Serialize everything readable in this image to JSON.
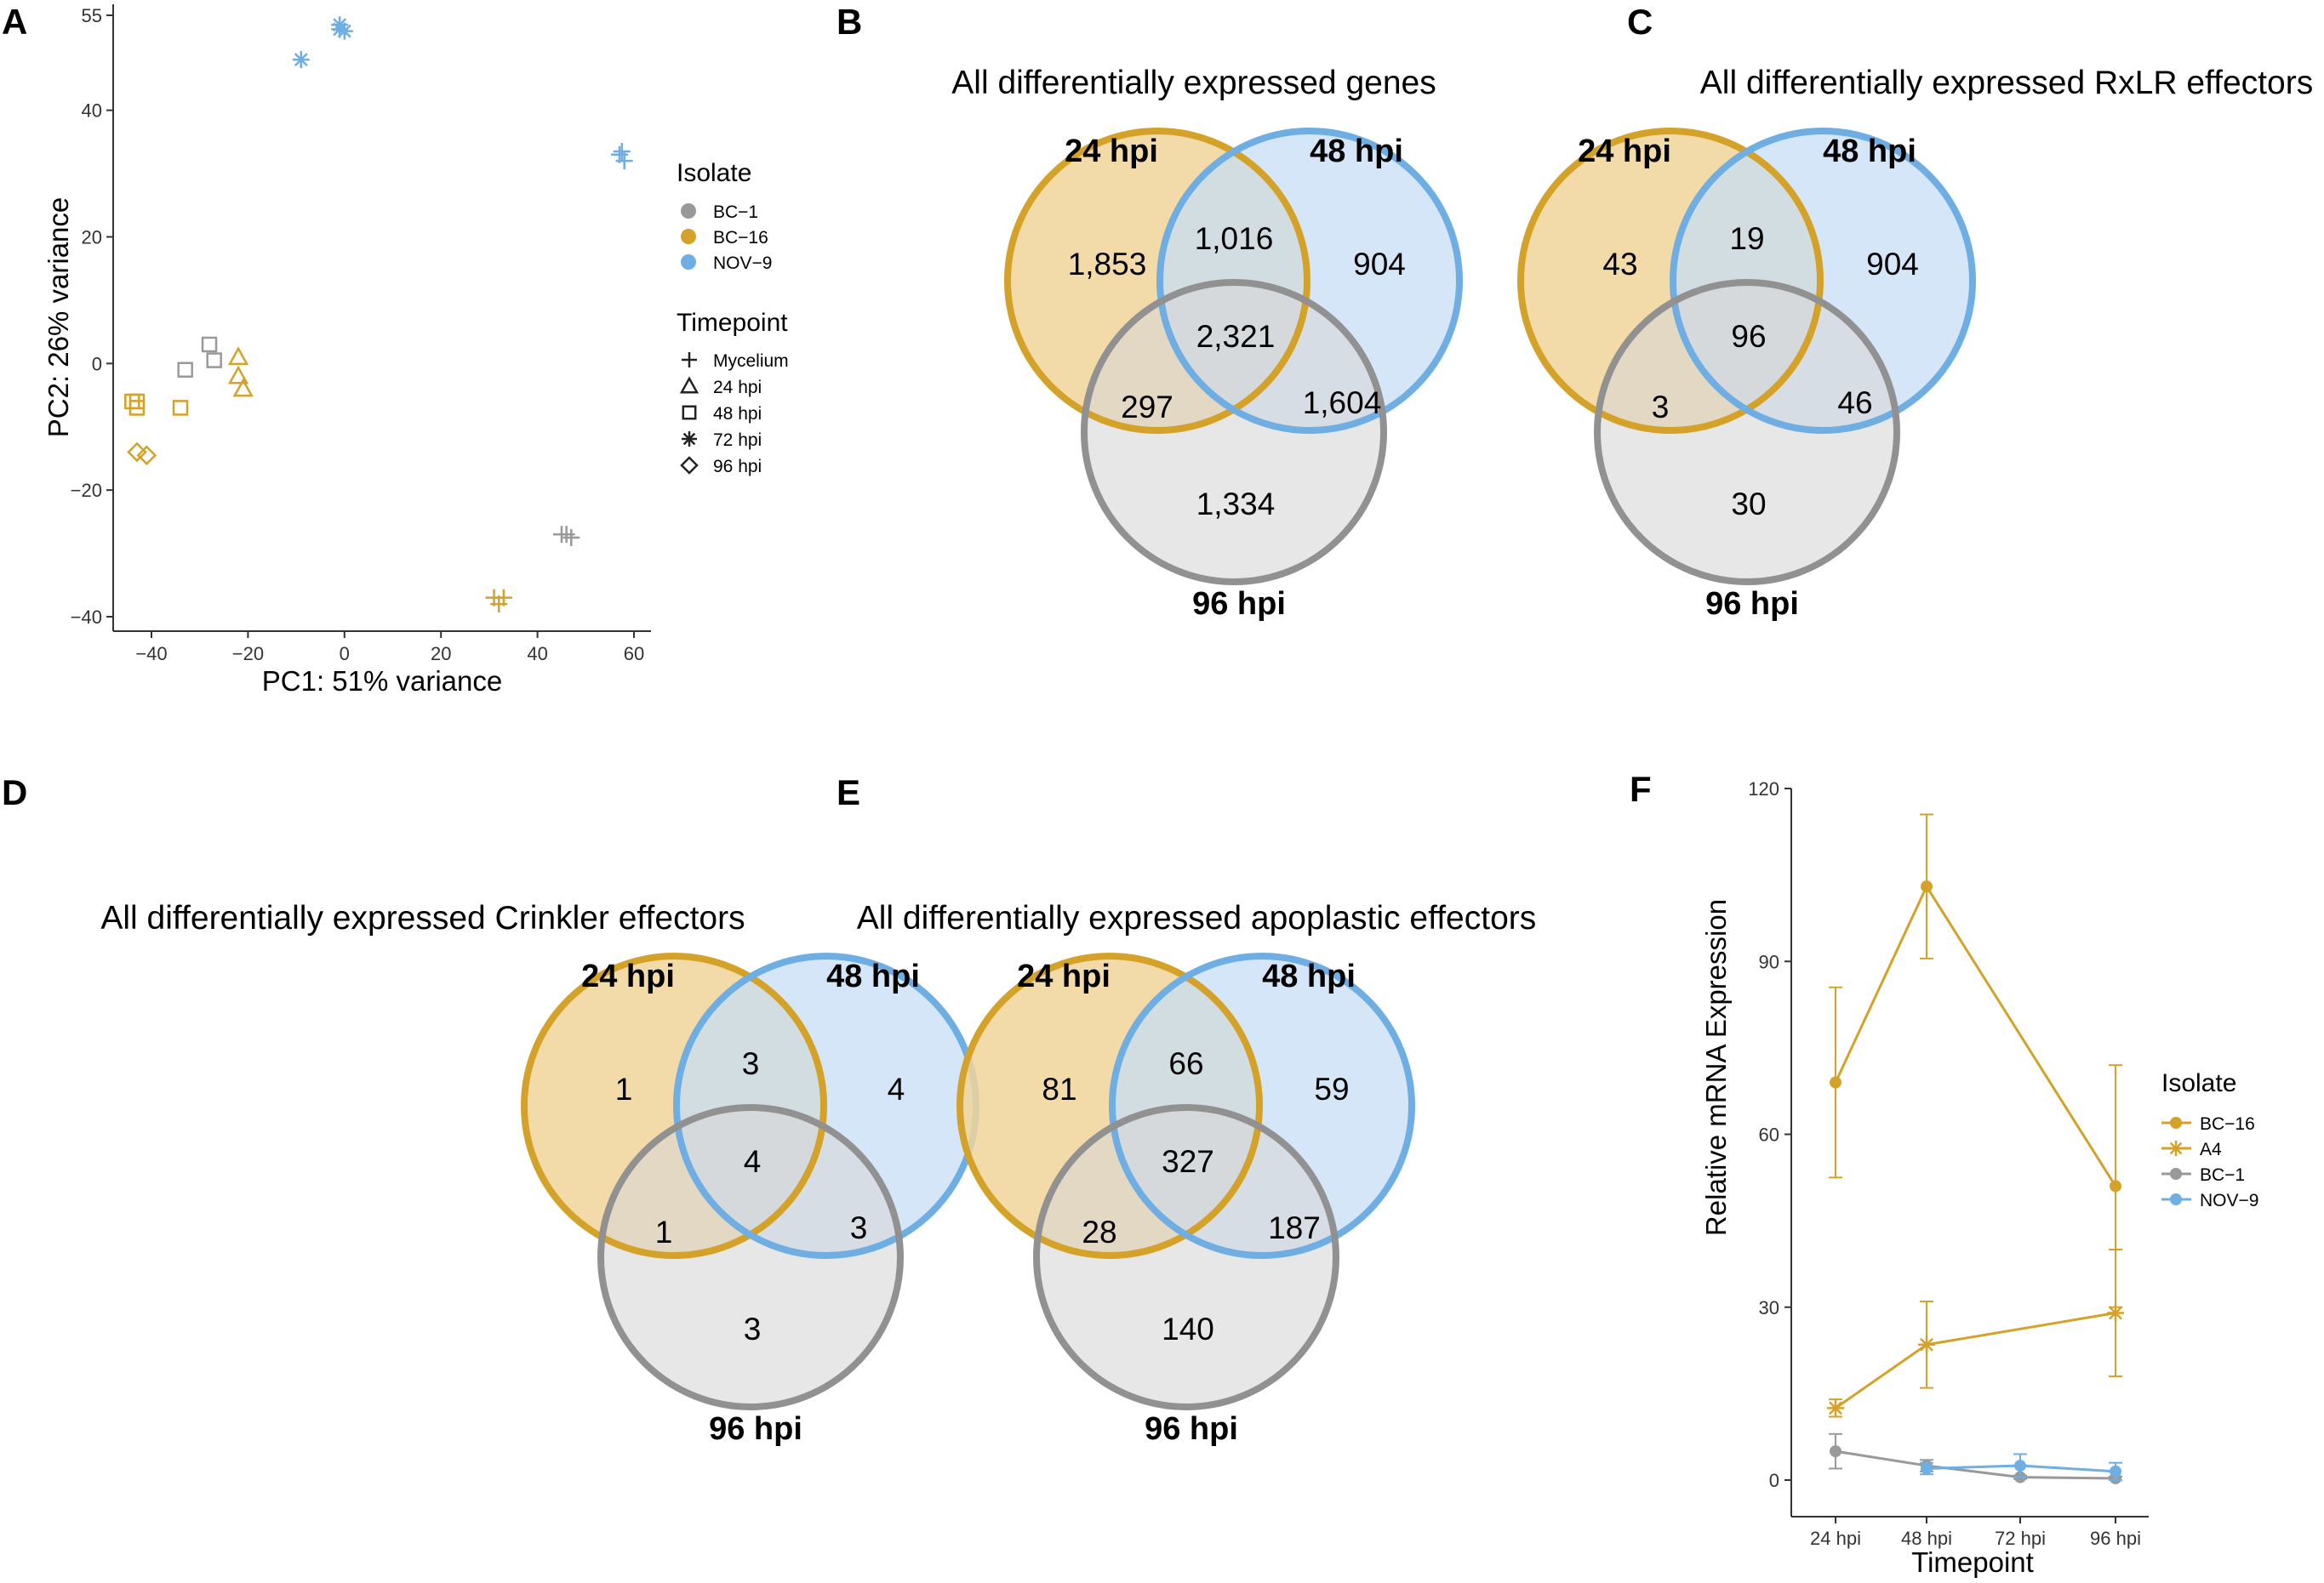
{
  "colors": {
    "BC-1": "#999999",
    "BC-16": "#D4A228",
    "NOV-9": "#6FAEE2",
    "A4": "#D4A228",
    "vennFill24": "#F0D49A",
    "vennFill48": "#C7DEF5",
    "vennFill96": "#D7D7D7",
    "vennStroke24": "#D4A228",
    "vennStroke48": "#6FAEE2",
    "vennStroke96": "#919191"
  },
  "chart_data": [
    {
      "panel": "A",
      "type": "scatter",
      "xlabel": "PC1: 51% variance",
      "ylabel": "PC2: 26% variance",
      "xlim": [
        -50,
        65
      ],
      "ylim": [
        -42,
        56
      ],
      "xticks": [
        "−40",
        "−20",
        "0",
        "20",
        "40",
        "60"
      ],
      "yticks": [
        "−40",
        "−20",
        "0",
        "20",
        "40",
        "55"
      ],
      "legend_isolate": {
        "title": "Isolate",
        "items": [
          "BC−1",
          "BC−16",
          "NOV−9"
        ]
      },
      "legend_timepoint": {
        "title": "Timepoint",
        "items": [
          "Mycelium",
          "24 hpi",
          "48 hpi",
          "72 hpi",
          "96 hpi"
        ]
      },
      "points": [
        {
          "x": -1,
          "y": 53.5,
          "isolate": "NOV-9",
          "timepoint": "72 hpi"
        },
        {
          "x": 0,
          "y": 52.5,
          "isolate": "NOV-9",
          "timepoint": "72 hpi"
        },
        {
          "x": -1,
          "y": 52.8,
          "isolate": "NOV-9",
          "timepoint": "72 hpi"
        },
        {
          "x": -9,
          "y": 48,
          "isolate": "NOV-9",
          "timepoint": "72 hpi"
        },
        {
          "x": 57,
          "y": 33,
          "isolate": "NOV-9",
          "timepoint": "Mycelium"
        },
        {
          "x": 58,
          "y": 32,
          "isolate": "NOV-9",
          "timepoint": "Mycelium"
        },
        {
          "x": 57.5,
          "y": 33.5,
          "isolate": "NOV-9",
          "timepoint": "Mycelium"
        },
        {
          "x": -28,
          "y": 3,
          "isolate": "BC-1",
          "timepoint": "48 hpi"
        },
        {
          "x": -27,
          "y": 0.5,
          "isolate": "BC-1",
          "timepoint": "48 hpi"
        },
        {
          "x": -33,
          "y": -1,
          "isolate": "BC-1",
          "timepoint": "48 hpi"
        },
        {
          "x": -22,
          "y": 1,
          "isolate": "BC-16",
          "timepoint": "24 hpi"
        },
        {
          "x": -22,
          "y": -2,
          "isolate": "BC-16",
          "timepoint": "24 hpi"
        },
        {
          "x": -21,
          "y": -4,
          "isolate": "BC-16",
          "timepoint": "24 hpi"
        },
        {
          "x": -44,
          "y": -6,
          "isolate": "BC-16",
          "timepoint": "48 hpi"
        },
        {
          "x": -43,
          "y": -7,
          "isolate": "BC-16",
          "timepoint": "48 hpi"
        },
        {
          "x": -34,
          "y": -7,
          "isolate": "BC-16",
          "timepoint": "48 hpi"
        },
        {
          "x": -43,
          "y": -6,
          "isolate": "BC-16",
          "timepoint": "48 hpi"
        },
        {
          "x": -43,
          "y": -14,
          "isolate": "BC-16",
          "timepoint": "96 hpi"
        },
        {
          "x": -41,
          "y": -14.5,
          "isolate": "BC-16",
          "timepoint": "96 hpi"
        },
        {
          "x": 46,
          "y": -27,
          "isolate": "BC-1",
          "timepoint": "Mycelium"
        },
        {
          "x": 47,
          "y": -27.5,
          "isolate": "BC-1",
          "timepoint": "Mycelium"
        },
        {
          "x": 45,
          "y": -27,
          "isolate": "BC-1",
          "timepoint": "Mycelium"
        },
        {
          "x": 31,
          "y": -37,
          "isolate": "BC-16",
          "timepoint": "Mycelium"
        },
        {
          "x": 33,
          "y": -37,
          "isolate": "BC-16",
          "timepoint": "Mycelium"
        },
        {
          "x": 32,
          "y": -38,
          "isolate": "BC-16",
          "timepoint": "Mycelium"
        }
      ]
    },
    {
      "panel": "B",
      "type": "venn",
      "title": "All differentially expressed genes",
      "sets": [
        "24 hpi",
        "48 hpi",
        "96 hpi"
      ],
      "regions": {
        "a": "1,853",
        "b": "904",
        "c": "1,334",
        "ab": "1,016",
        "ac": "297",
        "bc": "1,604",
        "abc": "2,321"
      }
    },
    {
      "panel": "C",
      "type": "venn",
      "title": "All differentially expressed RxLR effectors",
      "sets": [
        "24 hpi",
        "48 hpi",
        "96 hpi"
      ],
      "regions": {
        "a": "43",
        "b": "904",
        "c": "30",
        "ab": "19",
        "ac": "3",
        "bc": "46",
        "abc": "96"
      }
    },
    {
      "panel": "D",
      "type": "venn",
      "title": "All differentially expressed Crinkler effectors",
      "sets": [
        "24 hpi",
        "48 hpi",
        "96 hpi"
      ],
      "regions": {
        "a": "1",
        "b": "4",
        "c": "3",
        "ab": "3",
        "ac": "1",
        "bc": "3",
        "abc": "4"
      }
    },
    {
      "panel": "E",
      "type": "venn",
      "title": "All differentially expressed apoplastic effectors",
      "sets": [
        "24 hpi",
        "48 hpi",
        "96 hpi"
      ],
      "regions": {
        "a": "81",
        "b": "59",
        "c": "140",
        "ab": "66",
        "ac": "28",
        "bc": "187",
        "abc": "327"
      }
    },
    {
      "panel": "F",
      "type": "line",
      "xlabel": "Timepoint",
      "ylabel": "Relative mRNA Expression",
      "categories": [
        "24 hpi",
        "48 hpi",
        "72 hpi",
        "96 hpi"
      ],
      "ylim": [
        -6,
        120
      ],
      "yticks": [
        0,
        30,
        60,
        90,
        120
      ],
      "legend": {
        "title": "Isolate",
        "items": [
          "BC−16",
          "A4",
          "BC−1",
          "NOV−9"
        ]
      },
      "series": [
        {
          "name": "BC-16",
          "marker": "circle",
          "points": [
            {
              "x": "24 hpi",
              "y": 69,
              "err": 16.5
            },
            {
              "x": "48 hpi",
              "y": 103,
              "err": 12.5
            },
            {
              "x": "96 hpi",
              "y": 51,
              "err": 21
            }
          ]
        },
        {
          "name": "A4",
          "marker": "star",
          "points": [
            {
              "x": "24 hpi",
              "y": 12.5,
              "err": 1.5
            },
            {
              "x": "48 hpi",
              "y": 23.5,
              "err": 7.5
            },
            {
              "x": "96 hpi",
              "y": 29,
              "err": 11
            }
          ]
        },
        {
          "name": "BC-1",
          "marker": "circle",
          "points": [
            {
              "x": "24 hpi",
              "y": 5,
              "err": 3
            },
            {
              "x": "48 hpi",
              "y": 2.5,
              "err": 1
            },
            {
              "x": "72 hpi",
              "y": 0.5,
              "err": 0.3
            },
            {
              "x": "96 hpi",
              "y": 0.3,
              "err": 0.3
            }
          ]
        },
        {
          "name": "NOV-9",
          "marker": "circle",
          "points": [
            {
              "x": "48 hpi",
              "y": 2,
              "err": 1
            },
            {
              "x": "72 hpi",
              "y": 2.5,
              "err": 2
            },
            {
              "x": "96 hpi",
              "y": 1.5,
              "err": 1.5
            }
          ]
        }
      ]
    }
  ]
}
